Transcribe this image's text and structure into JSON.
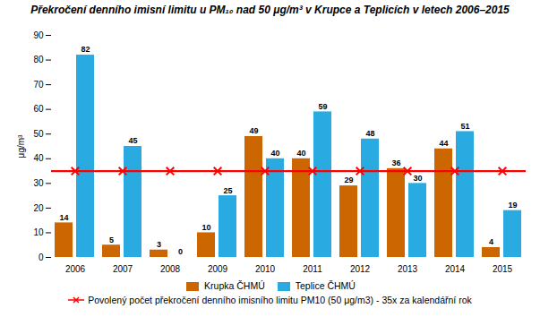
{
  "chart_data": {
    "type": "bar",
    "title": "Překročení denního imisní limitu u PM₁₀ nad 50 μg/m³ v Krupce a Teplicích v letech 2006–2015",
    "categories": [
      "2006",
      "2007",
      "2008",
      "2009",
      "2010",
      "2011",
      "2012",
      "2013",
      "2014",
      "2015"
    ],
    "series": [
      {
        "name": "Krupka ČHMÚ",
        "color": "#CC6600",
        "values": [
          14,
          5,
          3,
          10,
          49,
          40,
          29,
          36,
          44,
          4
        ]
      },
      {
        "name": "Teplice ČHMÚ",
        "color": "#29ABE2",
        "values": [
          82,
          45,
          0,
          25,
          40,
          59,
          48,
          30,
          51,
          19
        ]
      },
      {
        "name": "Povolený počet překročení denního imisního limitu PM10 (50 μg/m3) - 35x za kalendářní rok",
        "type": "line",
        "color": "#FF0000",
        "marker": "x",
        "values": [
          35,
          35,
          35,
          35,
          35,
          35,
          35,
          35,
          35,
          35
        ]
      }
    ],
    "ylabel": "μg/m³",
    "ylim": [
      0,
      90
    ],
    "yticks": [
      0,
      10,
      20,
      30,
      40,
      50,
      60,
      70,
      80,
      90
    ],
    "data_labels": true,
    "grid": false,
    "legend": "bottom"
  }
}
